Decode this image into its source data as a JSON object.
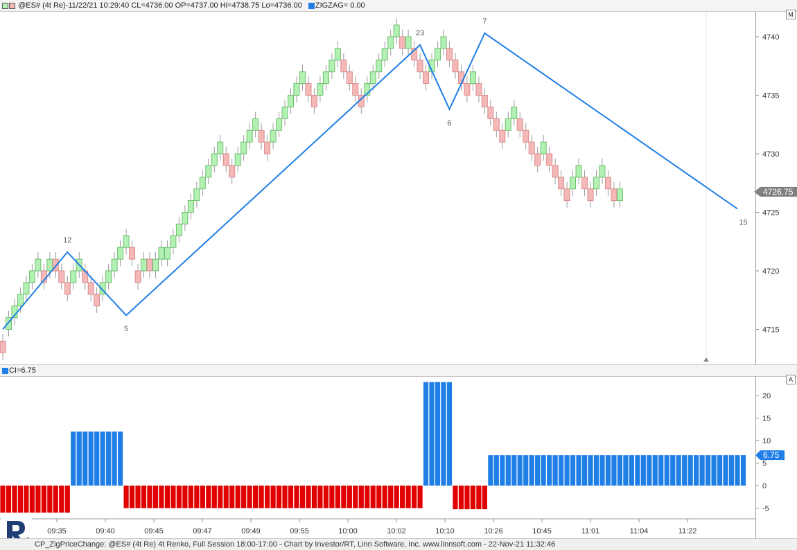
{
  "top_header": {
    "legend1": "@ES# (4t Re)-11/22/21 10:29:40 CL=4736.00 OP=4737.00 Hi=4738.75 Lo=4736.00",
    "legend2": "ZIGZAG= 0.00",
    "button": "M"
  },
  "bottom_header": {
    "legend": "CI=6.75",
    "button": "A"
  },
  "footer": {
    "text": "CP_ZigPriceChange: @ES# (4t Re) 4t Renko, Full Session 18:00-17:00 - Chart by Investor/RT, Linn Software, Inc. www.linnsoft.com - 22-Nov-21 11:32:46"
  },
  "colors": {
    "up_brick": "#b3f0b3",
    "up_brick_border": "#6cbf6c",
    "down_brick": "#f5b8b8",
    "down_brick_border": "#d98c8c",
    "zigzag": "#1f7fe6",
    "ci_pos": "#1f7fe6",
    "ci_neg": "#e00000"
  },
  "chart_data": [
    {
      "type": "candlestick",
      "title": "",
      "y_ticks": [
        4715,
        4720,
        4725,
        4730,
        4735,
        4740
      ],
      "ylim": [
        4712,
        4743
      ],
      "last_price_label": "4726.75",
      "last_price": 4726.75,
      "brick_size": 1,
      "bricks": [
        {
          "open": 4713,
          "close": 4714,
          "dir": "down"
        },
        {
          "open": 4715,
          "close": 4716,
          "dir": "up"
        },
        {
          "open": 4716,
          "close": 4717,
          "dir": "up"
        },
        {
          "open": 4717,
          "close": 4718,
          "dir": "up"
        },
        {
          "open": 4718,
          "close": 4719,
          "dir": "up"
        },
        {
          "open": 4719,
          "close": 4720,
          "dir": "up"
        },
        {
          "open": 4720,
          "close": 4721,
          "dir": "up"
        },
        {
          "open": 4720,
          "close": 4719,
          "dir": "down"
        },
        {
          "open": 4720,
          "close": 4721,
          "dir": "up"
        },
        {
          "open": 4721,
          "close": 4720,
          "dir": "down"
        },
        {
          "open": 4720,
          "close": 4719,
          "dir": "down"
        },
        {
          "open": 4719,
          "close": 4718,
          "dir": "down"
        },
        {
          "open": 4719,
          "close": 4720,
          "dir": "up"
        },
        {
          "open": 4720,
          "close": 4721,
          "dir": "up"
        },
        {
          "open": 4720,
          "close": 4719,
          "dir": "down"
        },
        {
          "open": 4719,
          "close": 4718,
          "dir": "down"
        },
        {
          "open": 4718,
          "close": 4717,
          "dir": "down"
        },
        {
          "open": 4718,
          "close": 4719,
          "dir": "up"
        },
        {
          "open": 4719,
          "close": 4720,
          "dir": "up"
        },
        {
          "open": 4720,
          "close": 4721,
          "dir": "up"
        },
        {
          "open": 4721,
          "close": 4722,
          "dir": "up"
        },
        {
          "open": 4722,
          "close": 4723,
          "dir": "up"
        },
        {
          "open": 4722,
          "close": 4721,
          "dir": "down"
        },
        {
          "open": 4720,
          "close": 4719,
          "dir": "down"
        },
        {
          "open": 4720,
          "close": 4721,
          "dir": "up"
        },
        {
          "open": 4721,
          "close": 4720,
          "dir": "down"
        },
        {
          "open": 4720,
          "close": 4721,
          "dir": "up"
        },
        {
          "open": 4721,
          "close": 4722,
          "dir": "up"
        },
        {
          "open": 4721,
          "close": 4722,
          "dir": "up"
        },
        {
          "open": 4722,
          "close": 4723,
          "dir": "up"
        },
        {
          "open": 4723,
          "close": 4724,
          "dir": "up"
        },
        {
          "open": 4724,
          "close": 4725,
          "dir": "up"
        },
        {
          "open": 4725,
          "close": 4726,
          "dir": "up"
        },
        {
          "open": 4726,
          "close": 4727,
          "dir": "up"
        },
        {
          "open": 4727,
          "close": 4728,
          "dir": "up"
        },
        {
          "open": 4728,
          "close": 4729,
          "dir": "up"
        },
        {
          "open": 4729,
          "close": 4730,
          "dir": "up"
        },
        {
          "open": 4730,
          "close": 4731,
          "dir": "up"
        },
        {
          "open": 4730,
          "close": 4729,
          "dir": "down"
        },
        {
          "open": 4729,
          "close": 4728,
          "dir": "down"
        },
        {
          "open": 4729,
          "close": 4730,
          "dir": "up"
        },
        {
          "open": 4730,
          "close": 4731,
          "dir": "up"
        },
        {
          "open": 4731,
          "close": 4732,
          "dir": "up"
        },
        {
          "open": 4732,
          "close": 4733,
          "dir": "up"
        },
        {
          "open": 4732,
          "close": 4731,
          "dir": "down"
        },
        {
          "open": 4731,
          "close": 4730,
          "dir": "down"
        },
        {
          "open": 4731,
          "close": 4732,
          "dir": "up"
        },
        {
          "open": 4732,
          "close": 4733,
          "dir": "up"
        },
        {
          "open": 4733,
          "close": 4734,
          "dir": "up"
        },
        {
          "open": 4734,
          "close": 4735,
          "dir": "up"
        },
        {
          "open": 4735,
          "close": 4736,
          "dir": "up"
        },
        {
          "open": 4736,
          "close": 4737,
          "dir": "up"
        },
        {
          "open": 4736,
          "close": 4735,
          "dir": "down"
        },
        {
          "open": 4735,
          "close": 4734,
          "dir": "down"
        },
        {
          "open": 4735,
          "close": 4736,
          "dir": "up"
        },
        {
          "open": 4736,
          "close": 4737,
          "dir": "up"
        },
        {
          "open": 4737,
          "close": 4738,
          "dir": "up"
        },
        {
          "open": 4738,
          "close": 4739,
          "dir": "up"
        },
        {
          "open": 4738,
          "close": 4737,
          "dir": "down"
        },
        {
          "open": 4737,
          "close": 4736,
          "dir": "down"
        },
        {
          "open": 4736,
          "close": 4735,
          "dir": "down"
        },
        {
          "open": 4735,
          "close": 4734,
          "dir": "down"
        },
        {
          "open": 4735,
          "close": 4736,
          "dir": "up"
        },
        {
          "open": 4736,
          "close": 4737,
          "dir": "up"
        },
        {
          "open": 4737,
          "close": 4738,
          "dir": "up"
        },
        {
          "open": 4738,
          "close": 4739,
          "dir": "up"
        },
        {
          "open": 4739,
          "close": 4740,
          "dir": "up"
        },
        {
          "open": 4740,
          "close": 4741,
          "dir": "up"
        },
        {
          "open": 4740,
          "close": 4739,
          "dir": "down"
        },
        {
          "open": 4739,
          "close": 4740,
          "dir": "up"
        },
        {
          "open": 4739,
          "close": 4738,
          "dir": "down"
        },
        {
          "open": 4738,
          "close": 4737,
          "dir": "down"
        },
        {
          "open": 4737,
          "close": 4736,
          "dir": "down"
        },
        {
          "open": 4737,
          "close": 4738,
          "dir": "up"
        },
        {
          "open": 4738,
          "close": 4739,
          "dir": "up"
        },
        {
          "open": 4739,
          "close": 4740,
          "dir": "up"
        },
        {
          "open": 4739,
          "close": 4738,
          "dir": "down"
        },
        {
          "open": 4738,
          "close": 4737,
          "dir": "down"
        },
        {
          "open": 4737,
          "close": 4736,
          "dir": "down"
        },
        {
          "open": 4736,
          "close": 4735,
          "dir": "down"
        },
        {
          "open": 4736,
          "close": 4737,
          "dir": "up"
        },
        {
          "open": 4736,
          "close": 4735,
          "dir": "down"
        },
        {
          "open": 4735,
          "close": 4734,
          "dir": "down"
        },
        {
          "open": 4734,
          "close": 4733,
          "dir": "down"
        },
        {
          "open": 4733,
          "close": 4732,
          "dir": "down"
        },
        {
          "open": 4732,
          "close": 4731,
          "dir": "down"
        },
        {
          "open": 4732,
          "close": 4733,
          "dir": "up"
        },
        {
          "open": 4733,
          "close": 4734,
          "dir": "up"
        },
        {
          "open": 4733,
          "close": 4732,
          "dir": "down"
        },
        {
          "open": 4732,
          "close": 4731,
          "dir": "down"
        },
        {
          "open": 4731,
          "close": 4730,
          "dir": "down"
        },
        {
          "open": 4730,
          "close": 4729,
          "dir": "down"
        },
        {
          "open": 4730,
          "close": 4731,
          "dir": "up"
        },
        {
          "open": 4730,
          "close": 4729,
          "dir": "down"
        },
        {
          "open": 4729,
          "close": 4728,
          "dir": "down"
        },
        {
          "open": 4728,
          "close": 4727,
          "dir": "down"
        },
        {
          "open": 4727,
          "close": 4726,
          "dir": "down"
        },
        {
          "open": 4727,
          "close": 4728,
          "dir": "up"
        },
        {
          "open": 4728,
          "close": 4729,
          "dir": "up"
        },
        {
          "open": 4728,
          "close": 4727,
          "dir": "down"
        },
        {
          "open": 4727,
          "close": 4726,
          "dir": "down"
        },
        {
          "open": 4727,
          "close": 4728,
          "dir": "up"
        },
        {
          "open": 4728,
          "close": 4729,
          "dir": "up"
        },
        {
          "open": 4728,
          "close": 4727,
          "dir": "down"
        },
        {
          "open": 4727,
          "close": 4726,
          "dir": "down"
        },
        {
          "open": 4726,
          "close": 4727,
          "dir": "up"
        }
      ],
      "zigzag": [
        {
          "bar": 0,
          "price": 4715.0
        },
        {
          "bar": 11,
          "price": 4721.6
        },
        {
          "bar": 21,
          "price": 4716.2
        },
        {
          "bar": 71,
          "price": 4739.3
        },
        {
          "bar": 76,
          "price": 4733.8
        },
        {
          "bar": 82,
          "price": 4740.3
        },
        {
          "bar": 125,
          "price": 4725.3
        }
      ],
      "zigzag_labels": [
        {
          "text": "12",
          "bar": 11,
          "price": 4721.6,
          "pos": "above"
        },
        {
          "text": "5",
          "bar": 21,
          "price": 4716.2,
          "pos": "below"
        },
        {
          "text": "23",
          "bar": 71,
          "price": 4739.3,
          "pos": "above"
        },
        {
          "text": "6",
          "bar": 76,
          "price": 4733.8,
          "pos": "below"
        },
        {
          "text": "7",
          "bar": 82,
          "price": 4740.3,
          "pos": "above"
        },
        {
          "text": "15",
          "bar": 126,
          "price": 4725.3,
          "pos": "below"
        }
      ],
      "x_ticks": [
        "09:35",
        "09:40",
        "09:45",
        "09:47",
        "09:49",
        "09:55",
        "10:00",
        "10:02",
        "10:10",
        "10:26",
        "10:45",
        "11:01",
        "11:04",
        "11:22"
      ]
    },
    {
      "type": "bar",
      "title": "",
      "name": "CI",
      "value_label": "6.75",
      "y_ticks": [
        20,
        15,
        10,
        5,
        0,
        -5
      ],
      "ylim": [
        -7.5,
        24
      ],
      "segments": [
        {
          "count": 12,
          "value": -6
        },
        {
          "count": 9,
          "value": 12
        },
        {
          "count": 51,
          "value": -5
        },
        {
          "count": 5,
          "value": 23
        },
        {
          "count": 6,
          "value": -5.25
        },
        {
          "count": 44,
          "value": 6.75
        }
      ]
    }
  ]
}
